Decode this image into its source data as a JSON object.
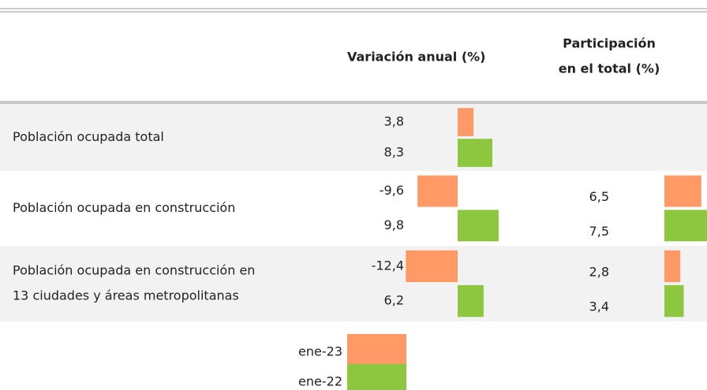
{
  "chart_data": {
    "type": "table-bars",
    "headers": {
      "variation": "Variación anual (%)",
      "participation": [
        "Participación",
        "en el total (%)"
      ]
    },
    "series": [
      {
        "name": "ene-23",
        "color": "#ff9966"
      },
      {
        "name": "ene-22",
        "color": "#8dc63f"
      }
    ],
    "rows": [
      {
        "label": [
          "Población ocupada total"
        ],
        "variation": [
          3.8,
          8.3
        ],
        "variation_labels": [
          "3,8",
          "8,3"
        ]
      },
      {
        "label": [
          "Población ocupada en construcción"
        ],
        "variation": [
          -9.6,
          9.8
        ],
        "variation_labels": [
          "-9,6",
          "9,8"
        ],
        "participation": [
          6.5,
          7.5
        ],
        "participation_labels": [
          "6,5",
          "7,5"
        ]
      },
      {
        "label": [
          "Población ocupada en construcción en",
          "13 ciudades y áreas metropolitanas"
        ],
        "variation": [
          -12.4,
          6.2
        ],
        "variation_labels": [
          "-12,4",
          "6,2"
        ],
        "participation": [
          2.8,
          3.4
        ],
        "participation_labels": [
          "2,8",
          "3,4"
        ]
      }
    ]
  }
}
